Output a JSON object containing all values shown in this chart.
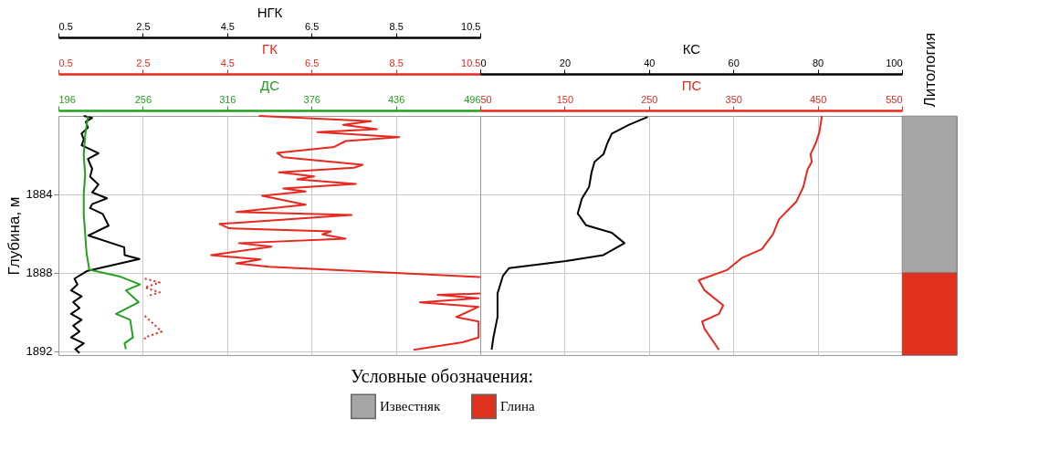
{
  "chart_data": [
    {
      "type": "line",
      "ylabel": "Глубина, м",
      "xlabel": "НГК",
      "x2label": "ГК",
      "xlim": [
        0.5,
        10.5
      ],
      "xticks": [
        0.5,
        2.5,
        4.5,
        6.5,
        8.5,
        10.5
      ],
      "x2lim": [
        0.5,
        10.5
      ],
      "x2ticks": [
        0.5,
        2.5,
        4.5,
        6.5,
        8.5,
        10.5
      ],
      "ylim": [
        1892.2,
        1880
      ],
      "yticks": [
        1884,
        1888,
        1892
      ],
      "grid": true,
      "series": [
        {
          "color": "#000000",
          "x": [
            1.1,
            1.3,
            1.15,
            1.2,
            1.05,
            1.1,
            1.05,
            1.45,
            1.2,
            1.3,
            1.25,
            1.45,
            1.3,
            1.65,
            1.3,
            1.25,
            1.55,
            1.69,
            1.21,
            2.06,
            2.07,
            2.42,
            1.19,
            0.88,
            0.95,
            0.8,
            1.05,
            0.85,
            1.0,
            0.8,
            1.05,
            0.85,
            1.0,
            0.8,
            1.1,
            0.9,
            1.0
          ],
          "values": [
            1880.0,
            1880.1,
            1880.3,
            1880.6,
            1880.9,
            1881.2,
            1881.5,
            1881.9,
            1882.2,
            1882.7,
            1883.1,
            1883.5,
            1883.9,
            1884.2,
            1884.5,
            1884.7,
            1885.0,
            1885.6,
            1886.1,
            1886.7,
            1887.1,
            1887.3,
            1887.9,
            1888.3,
            1888.6,
            1888.9,
            1889.2,
            1889.5,
            1889.8,
            1890.1,
            1890.4,
            1890.7,
            1891.0,
            1891.3,
            1891.6,
            1891.9,
            1892.1
          ]
        },
        {
          "axis": "x2",
          "color": "#e8281e",
          "x": [
            5.25,
            7.91,
            7.25,
            8.05,
            6.64,
            8.58,
            7.31,
            7.04,
            5.69,
            5.83,
            7.71,
            7.51,
            5.73,
            6.56,
            6.16,
            7.55,
            5.83,
            6.36,
            5.33,
            6.36,
            4.72,
            7.45,
            4.32,
            4.54,
            6.96,
            6.76,
            7.31,
            4.78,
            5.55,
            4.12,
            5.29,
            4.72,
            5.49,
            10.5,
            null,
            10.5,
            9.49,
            10.46,
            9.07,
            10.46,
            9.93,
            10.46,
            10.46,
            10.08,
            8.92
          ],
          "values": [
            1880.0,
            1880.27,
            1880.45,
            1880.68,
            1880.83,
            1881.08,
            1881.28,
            1881.58,
            1881.89,
            1882.11,
            1882.49,
            1882.64,
            1882.87,
            1883.09,
            1883.24,
            1883.47,
            1883.7,
            1883.85,
            1884.07,
            1884.53,
            1884.9,
            1885.05,
            1885.51,
            1885.73,
            1885.89,
            1886.04,
            1886.26,
            1886.49,
            1886.67,
            1887.1,
            1887.32,
            1887.52,
            1887.7,
            1888.22,
            null,
            1889.06,
            1889.13,
            1889.3,
            1889.51,
            1889.74,
            1890.26,
            1890.49,
            1891.3,
            1891.55,
            1891.93
          ]
        },
        {
          "axis": "x2",
          "color": "#e8281e",
          "line_style": "dotted",
          "x": [
            2.55,
            2.9,
            2.55,
            2.9,
            2.6,
            null,
            2.55,
            2.95,
            2.55,
            2.55
          ],
          "values": [
            1888.3,
            1888.5,
            1888.75,
            1889.0,
            1889.2,
            null,
            1890.2,
            1891.0,
            1891.3,
            1891.5
          ]
        }
      ]
    },
    {
      "type": "line",
      "xlabel": "ДС",
      "xlim": [
        196,
        496
      ],
      "xticks": [
        196,
        256,
        316,
        376,
        436,
        496
      ],
      "ylim": [
        1892.2,
        1880
      ],
      "tick_labels": "x",
      "series": [
        {
          "color": "#22a01e",
          "x": [
            217,
            215,
            214,
            215,
            214,
            214,
            215,
            216,
            218,
            240,
            254,
            244,
            253,
            237,
            247,
            249,
            243,
            244
          ],
          "values": [
            1880.0,
            1881.0,
            1882.0,
            1883.0,
            1884.0,
            1885.0,
            1886.0,
            1887.0,
            1887.85,
            1888.2,
            1888.6,
            1888.9,
            1889.5,
            1890.1,
            1890.4,
            1891.3,
            1891.6,
            1891.9
          ]
        }
      ]
    },
    {
      "type": "line",
      "xlabel": "КС",
      "x2label": "ПС",
      "xlim": [
        0,
        100
      ],
      "xticks": [
        0,
        20,
        40,
        60,
        80,
        100
      ],
      "x2lim": [
        50,
        550
      ],
      "x2ticks": [
        50,
        150,
        250,
        350,
        450,
        550
      ],
      "ylim": [
        1892.2,
        1880
      ],
      "yticks": [
        1884,
        1888,
        1892
      ],
      "grid": true,
      "tick_labels": "x",
      "series": [
        {
          "color": "#000000",
          "x": [
            39.7,
            35.3,
            31.2,
            30.2,
            29.2,
            27.1,
            26.4,
            25.8,
            24.1,
            23.1,
            25.1,
            31.2,
            34.2,
            29.2,
            20.3,
            6.8,
            5.4,
            4.1,
            4.1,
            3.1,
            2.7
          ],
          "values": [
            1880.05,
            1880.45,
            1880.9,
            1881.36,
            1881.96,
            1882.34,
            1882.87,
            1883.62,
            1884.22,
            1884.98,
            1885.58,
            1885.96,
            1886.49,
            1887.1,
            1887.4,
            1887.77,
            1888.15,
            1889.06,
            1890.26,
            1891.32,
            1891.93
          ]
        },
        {
          "axis": "x2",
          "color": "#e8281e",
          "x": [
            455,
            452,
            448,
            441.5,
            443,
            438,
            433,
            424.6,
            404,
            397,
            384,
            360,
            343,
            309,
            316,
            338,
            333,
            313,
            316,
            333
          ],
          "values": [
            1880.0,
            1880.83,
            1881.36,
            1881.96,
            1882.34,
            1882.72,
            1883.62,
            1884.38,
            1885.28,
            1886.04,
            1886.79,
            1887.25,
            1887.85,
            1888.38,
            1888.9,
            1889.66,
            1890.1,
            1890.49,
            1890.87,
            1891.93
          ]
        }
      ]
    },
    {
      "type": "bar",
      "ylabel": "Литология",
      "legend_title": "Условные обозначения:",
      "legend": "bottom",
      "categories": [
        null
      ],
      "ylim": [
        1892.2,
        1880
      ],
      "yticks": [
        1884,
        1888,
        1892
      ],
      "tick_labels": false,
      "series": [
        {
          "name": "Известняк",
          "color": "#a6a6a6",
          "base": [
            1880
          ],
          "values": [
            8
          ]
        },
        {
          "name": "Глина",
          "color": "#e0301e",
          "base": [
            1888
          ],
          "values": [
            4.2
          ]
        }
      ]
    }
  ]
}
